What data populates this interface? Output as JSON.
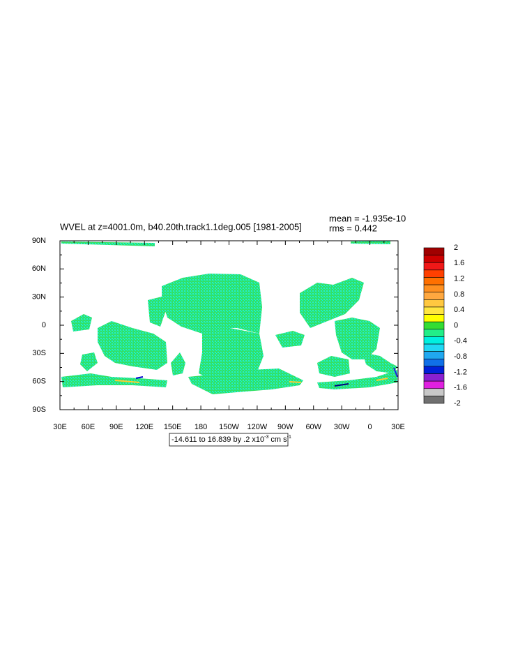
{
  "title": "WVEL at z=4001.0m, b40.20th.track1.1deg.005 [1981-2005]",
  "stats": {
    "mean": "mean = -1.935e-10",
    "rms": "rms = 0.442"
  },
  "lat_labels": [
    "90N",
    "60N",
    "30N",
    "0",
    "30S",
    "60S",
    "90S"
  ],
  "lon_labels": [
    "30E",
    "60E",
    "90E",
    "120E",
    "150E",
    "180",
    "150W",
    "120W",
    "90W",
    "60W",
    "30W",
    "0",
    "30E"
  ],
  "colorbar": {
    "labels": [
      "2",
      "1.6",
      "1.2",
      "0.8",
      "0.4",
      "0",
      "-0.4",
      "-0.8",
      "-1.2",
      "-1.6",
      "-2"
    ],
    "colors": [
      "#a00000",
      "#cc0000",
      "#f01818",
      "#ff4000",
      "#ff7000",
      "#ff9020",
      "#ffa840",
      "#ffc840",
      "#ffe640",
      "#ffff00",
      "#33dd33",
      "#22ee88",
      "#00f0e0",
      "#20d8f4",
      "#20a8f0",
      "#1070e8",
      "#0020d8",
      "#8a20d0",
      "#e020e0",
      "#c8c8c8",
      "#707070"
    ]
  },
  "info": {
    "text": "-14.611 to 16.839 by .2 x10",
    "exp": "-3",
    "unit": "cm s",
    "unit_exp": "-1"
  }
}
